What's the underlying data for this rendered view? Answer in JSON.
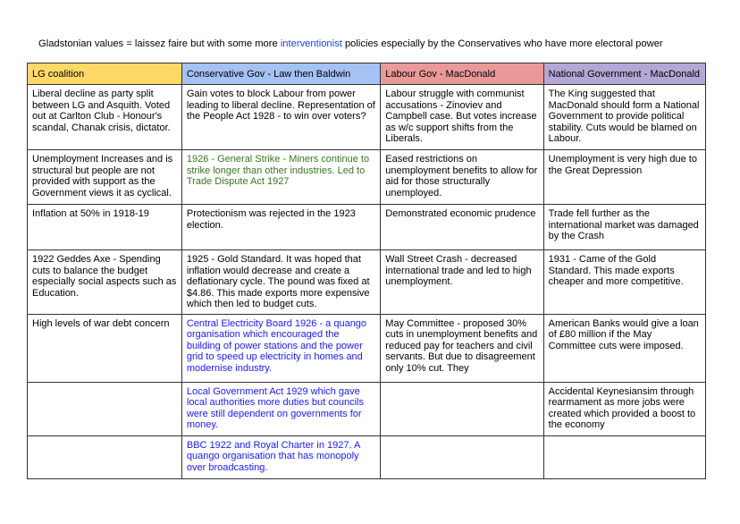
{
  "intro": {
    "before": "Gladstonian values = laissez faire but with some more ",
    "highlight": "interventionist",
    "after": " policies especially by the Conservatives who have more electoral power"
  },
  "colors": {
    "lg": "#ffd966",
    "con": "#a4c2f4",
    "lab": "#ea9999",
    "nat": "#b4a7d6",
    "green_text": "#38761d",
    "blue_text": "#1a1aff"
  },
  "headers": [
    "LG coalition",
    "Conservative Gov - Law then Baldwin",
    "Labour Gov - MacDonald",
    "National Government - MacDonald"
  ],
  "rows": [
    [
      {
        "text": "Liberal decline as party split between LG and Asquith. Voted out at Carlton Club - Honour's scandal, Chanak crisis, dictator.",
        "color": "#000000"
      },
      {
        "text": "Gain votes to block Labour from power leading to liberal decline. Representation of the People Act 1928 - to win over voters?",
        "color": "#000000"
      },
      {
        "text": "Labour struggle with communist accusations - Zinoviev and Campbell case. But votes increase as w/c support shifts from the Liberals.",
        "color": "#000000"
      },
      {
        "text": "The King suggested that MacDonald should form a National Government to provide political stability. Cuts would be blamed on Labour.",
        "color": "#000000"
      }
    ],
    [
      {
        "text": "Unemployment Increases and is structural but people are not provided with support as the Government views it as cyclical.",
        "color": "#000000"
      },
      {
        "text": "1926 - General Strike - Miners continue to strike longer than other industries. Led to Trade Dispute Act 1927",
        "color": "#38761d"
      },
      {
        "text": "Eased restrictions on unemployment benefits to allow for aid for those structurally unemployed.",
        "color": "#000000"
      },
      {
        "text": "Unemployment is very high due to the Great Depression",
        "color": "#000000"
      }
    ],
    [
      {
        "text": "Inflation at 50% in 1918-19",
        "color": "#000000"
      },
      {
        "text": "Protectionism was rejected in the 1923 election.",
        "color": "#000000"
      },
      {
        "text": "Demonstrated economic prudence",
        "color": "#000000"
      },
      {
        "text": "Trade fell further as the international market was damaged by the Crash",
        "color": "#000000"
      }
    ],
    [
      {
        "text": "1922 Geddes Axe - Spending cuts to balance the budget especially social aspects such as Education.",
        "color": "#000000"
      },
      {
        "text": "1925 - Gold Standard. It was hoped that inflation would decrease and create a deflationary cycle. The pound was fixed at $4.86. This made exports more expensive which then led to budget cuts.",
        "color": "#000000"
      },
      {
        "text": "Wall Street Crash - decreased international trade and led to high unemployment.",
        "color": "#000000"
      },
      {
        "text": "1931 - Came of the Gold Standard. This made exports cheaper and more competitive.",
        "color": "#000000"
      }
    ],
    [
      {
        "text": "High levels of war debt concern",
        "color": "#000000"
      },
      {
        "text": "Central Electricity Board 1926 - a quango organisation which encouraged the building of power stations and the power grid to speed up electricity in homes and modernise industry.",
        "color": "#1a1aff"
      },
      {
        "text": "May Committee - proposed 30% cuts in unemployment benefits and reduced pay for teachers and civil servants. But due to disagreement only 10% cut. They",
        "color": "#000000"
      },
      {
        "text": "American Banks would give a loan of £80 million if the May Committee cuts were imposed.",
        "color": "#000000"
      }
    ],
    [
      {
        "text": "",
        "color": "#000000"
      },
      {
        "text": "Local Government Act 1929 which gave local authorities more duties but councils were still dependent on governments for money.",
        "color": "#1a1aff"
      },
      {
        "text": "",
        "color": "#000000"
      },
      {
        "text": "Accidental Keynesiansim through rearmament as more jobs were created which provided a boost to the economy",
        "color": "#000000"
      }
    ],
    [
      {
        "text": "",
        "color": "#000000"
      },
      {
        "text": "BBC 1922 and Royal Charter in 1927. A quango organisation that has monopoly over broadcasting.",
        "color": "#1a1aff"
      },
      {
        "text": "",
        "color": "#000000"
      },
      {
        "text": "",
        "color": "#000000"
      }
    ]
  ]
}
